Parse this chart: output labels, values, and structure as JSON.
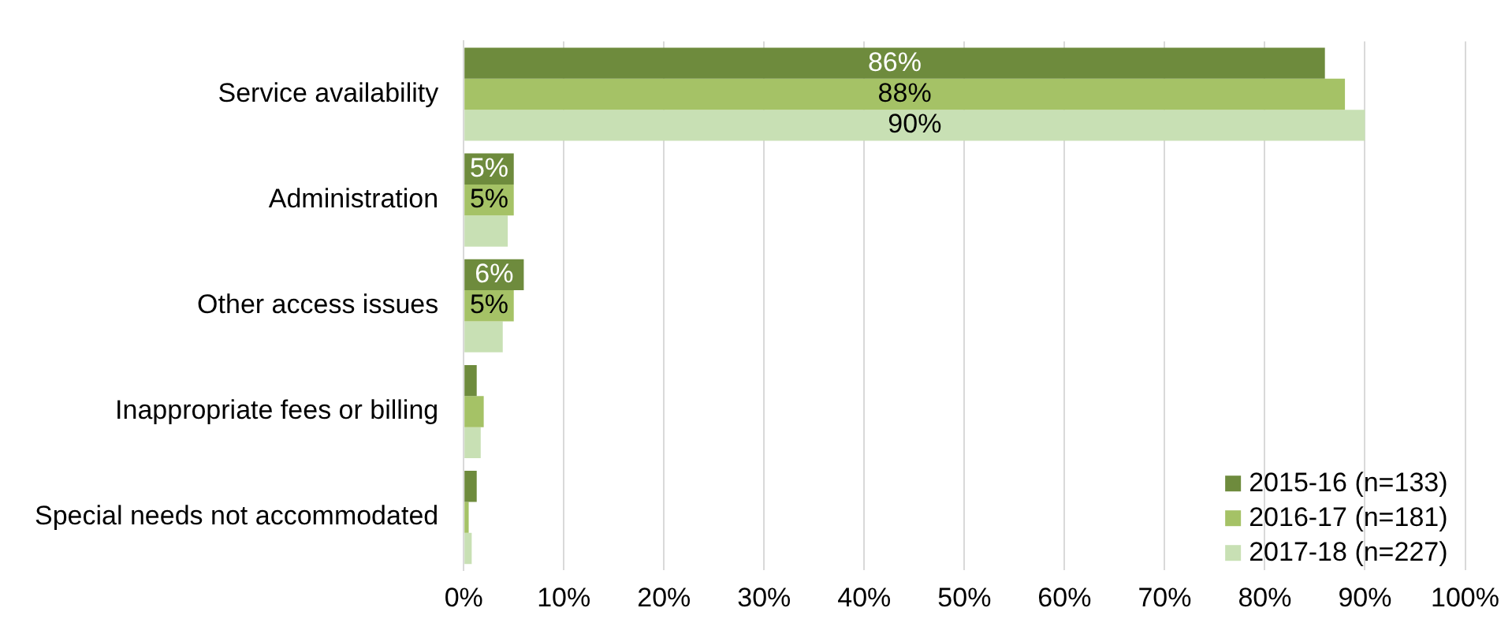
{
  "chart_data": {
    "type": "bar",
    "orientation": "horizontal",
    "categories": [
      "Service availability",
      "Administration",
      "Other access issues",
      "Inappropriate fees or billing",
      "Special needs not accommodated"
    ],
    "series": [
      {
        "name": "2015-16 (n=133)",
        "color": "#6e8b3d",
        "values": [
          86,
          5,
          6,
          1.3,
          1.3
        ],
        "value_labels": [
          "86%",
          "5%",
          "6%",
          null,
          null
        ]
      },
      {
        "name": "2016-17 (n=181)",
        "color": "#a5c266",
        "values": [
          88,
          5,
          5,
          2,
          0.5
        ],
        "value_labels": [
          "88%",
          "5%",
          "5%",
          null,
          null
        ]
      },
      {
        "name": "2017-18 (n=227)",
        "color": "#c8e0b4",
        "values": [
          90,
          4.4,
          3.9,
          1.7,
          0.8
        ],
        "value_labels": [
          "90%",
          null,
          null,
          null,
          null
        ]
      }
    ],
    "xlim": [
      0,
      100
    ],
    "xticks": [
      {
        "value": 0,
        "label": "0%"
      },
      {
        "value": 10,
        "label": "10%"
      },
      {
        "value": 20,
        "label": "20%"
      },
      {
        "value": 30,
        "label": "30%"
      },
      {
        "value": 40,
        "label": "40%"
      },
      {
        "value": 50,
        "label": "50%"
      },
      {
        "value": 60,
        "label": "60%"
      },
      {
        "value": 70,
        "label": "70%"
      },
      {
        "value": 80,
        "label": "80%"
      },
      {
        "value": 90,
        "label": "90%"
      },
      {
        "value": 100,
        "label": "100%"
      }
    ],
    "grid": "x",
    "legend": "bottom right"
  }
}
